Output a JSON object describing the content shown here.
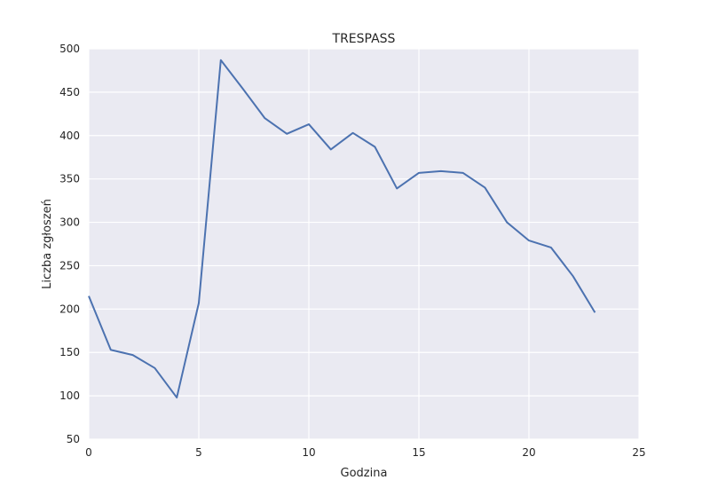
{
  "chart_data": {
    "type": "line",
    "title": "TRESPASS",
    "xlabel": "Godzina",
    "ylabel": "Liczba zgłoszeń",
    "xlim": [
      0,
      25
    ],
    "ylim": [
      50,
      500
    ],
    "xticks": [
      0,
      5,
      10,
      15,
      20,
      25
    ],
    "yticks": [
      50,
      100,
      150,
      200,
      250,
      300,
      350,
      400,
      450,
      500
    ],
    "grid": true,
    "legend": "none",
    "colors": {
      "background": "#eaeaf2",
      "grid": "#ffffff",
      "line": "#4c72b0"
    },
    "series": [
      {
        "x": [
          0,
          1,
          2,
          3,
          4,
          5,
          6,
          7,
          8,
          9,
          10,
          11,
          12,
          13,
          14,
          15,
          16,
          17,
          18,
          19,
          20,
          21,
          22,
          23
        ],
        "values": [
          215,
          153,
          147,
          132,
          98,
          207,
          487,
          454,
          420,
          402,
          413,
          384,
          403,
          387,
          339,
          357,
          359,
          357,
          340,
          300,
          279,
          271,
          238,
          196
        ]
      }
    ]
  }
}
